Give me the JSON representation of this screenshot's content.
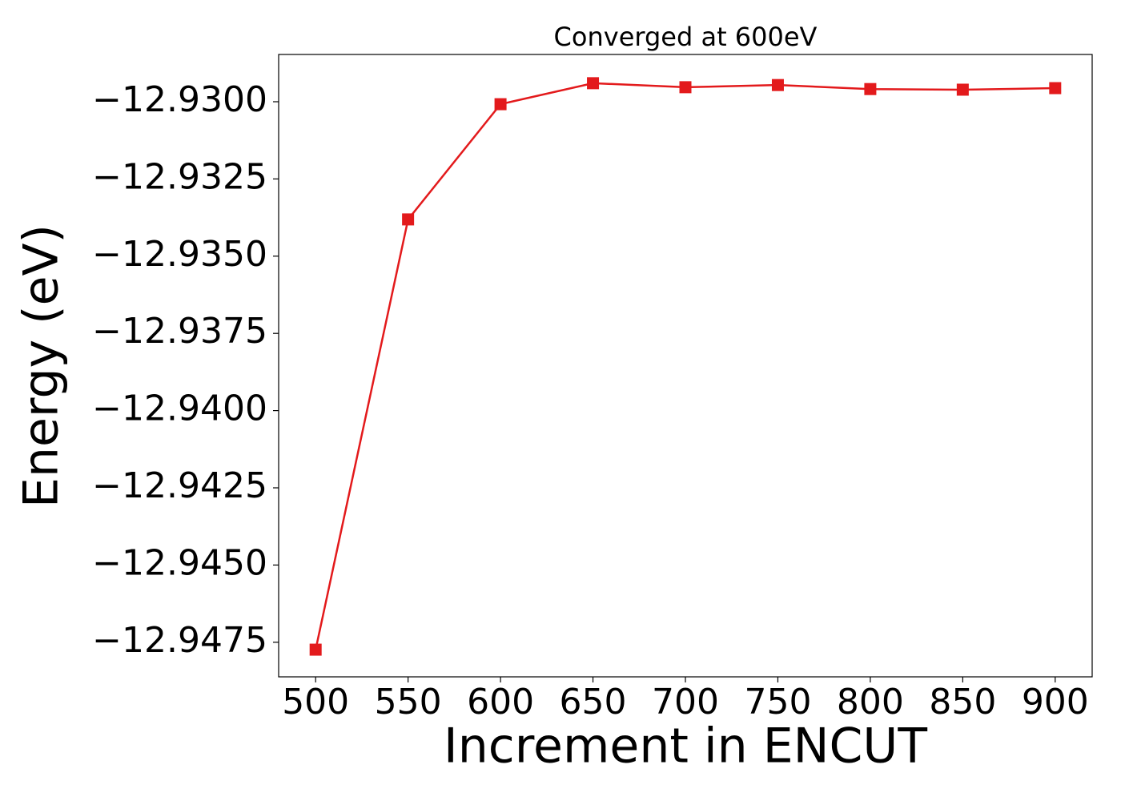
{
  "chart_data": {
    "type": "line",
    "title": "Converged at 600eV",
    "x_label": "Increment in ENCUT",
    "y_label": "Energy (eV)",
    "x": [
      500,
      550,
      600,
      650,
      700,
      750,
      800,
      850,
      900
    ],
    "series": [
      {
        "name": "Energy",
        "color": "#e31a1c",
        "values": [
          -12.94774,
          -12.93381,
          -12.93008,
          -12.9294,
          -12.92953,
          -12.92946,
          -12.92959,
          -12.92961,
          -12.92956
        ]
      }
    ],
    "xlim": [
      480,
      920
    ],
    "ylim": [
      -12.94862,
      -12.92847
    ],
    "xticks": [
      500,
      550,
      600,
      650,
      700,
      750,
      800,
      850,
      900
    ],
    "yticks": [
      {
        "value": -12.93,
        "label": "−12.9300"
      },
      {
        "value": -12.9325,
        "label": "−12.9325"
      },
      {
        "value": -12.935,
        "label": "−12.9350"
      },
      {
        "value": -12.9375,
        "label": "−12.9375"
      },
      {
        "value": -12.94,
        "label": "−12.9400"
      },
      {
        "value": -12.9425,
        "label": "−12.9425"
      },
      {
        "value": -12.945,
        "label": "−12.9450"
      },
      {
        "value": -12.9475,
        "label": "−12.9475"
      }
    ],
    "grid": false
  }
}
